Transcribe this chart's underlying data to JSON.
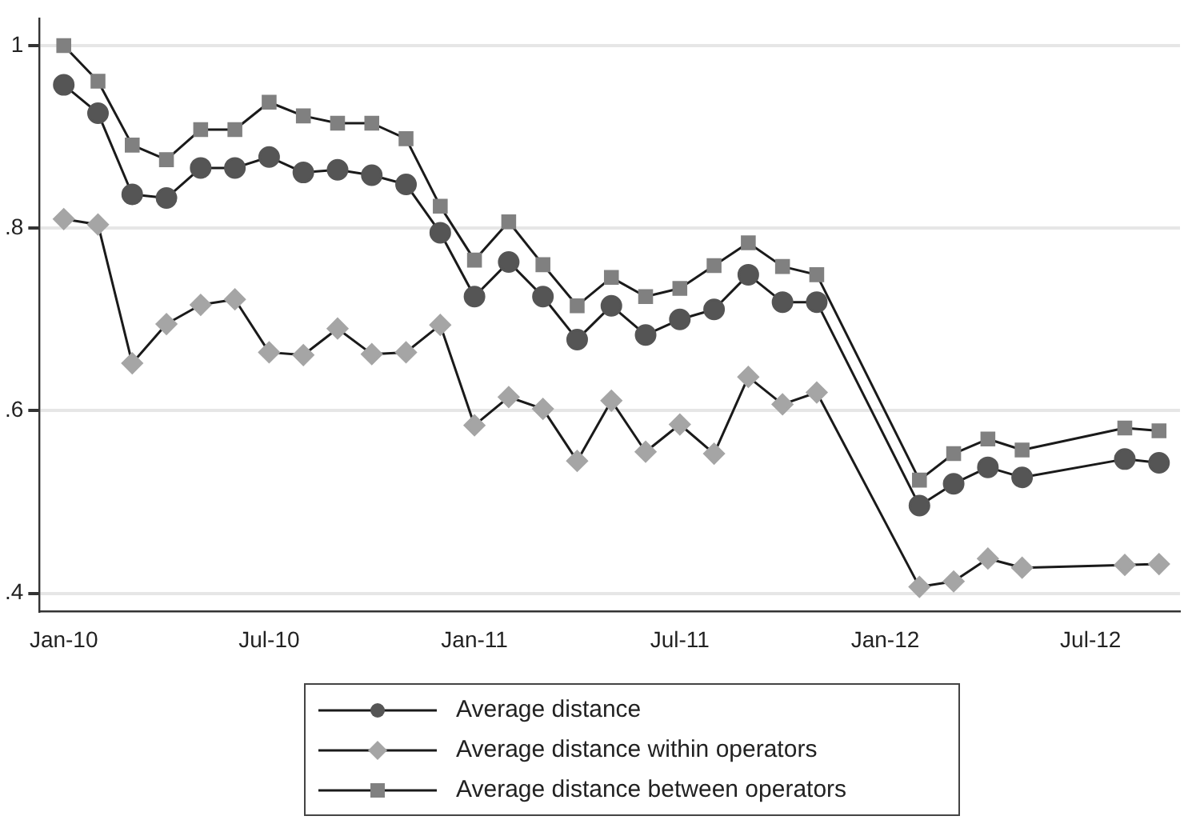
{
  "chart_data": {
    "type": "line",
    "x": [
      "2010-01",
      "2010-02",
      "2010-03",
      "2010-04",
      "2010-05",
      "2010-06",
      "2010-07",
      "2010-08",
      "2010-09",
      "2010-10",
      "2010-11",
      "2010-12",
      "2011-01",
      "2011-02",
      "2011-03",
      "2011-04",
      "2011-05",
      "2011-06",
      "2011-07",
      "2011-08",
      "2011-09",
      "2011-10",
      "2011-11",
      "2012-02",
      "2012-03",
      "2012-04",
      "2012-05",
      "2012-08",
      "2012-09"
    ],
    "series": [
      {
        "name": "Average distance",
        "color": "#555555",
        "marker": "circle",
        "values": [
          0.957,
          0.926,
          0.837,
          0.833,
          0.866,
          0.866,
          0.878,
          0.861,
          0.864,
          0.858,
          0.848,
          0.795,
          0.725,
          0.763,
          0.725,
          0.678,
          0.715,
          0.683,
          0.7,
          0.711,
          0.749,
          0.719,
          0.719,
          0.496,
          0.52,
          0.538,
          0.527,
          0.547,
          0.543
        ]
      },
      {
        "name": "Average distance within operators",
        "color": "#a5a5a5",
        "marker": "diamond",
        "values": [
          0.81,
          0.804,
          0.652,
          0.695,
          0.716,
          0.722,
          0.664,
          0.661,
          0.69,
          0.662,
          0.664,
          0.694,
          0.584,
          0.615,
          0.602,
          0.545,
          0.611,
          0.555,
          0.585,
          0.553,
          0.637,
          0.607,
          0.62,
          0.407,
          0.413,
          0.438,
          0.428,
          0.431,
          0.432
        ]
      },
      {
        "name": "Average distance between operators",
        "color": "#808080",
        "marker": "square",
        "values": [
          1.0,
          0.961,
          0.891,
          0.875,
          0.908,
          0.908,
          0.938,
          0.923,
          0.915,
          0.915,
          0.898,
          0.824,
          0.765,
          0.807,
          0.76,
          0.715,
          0.746,
          0.725,
          0.734,
          0.759,
          0.784,
          0.758,
          0.749,
          0.524,
          0.553,
          0.569,
          0.557,
          0.581,
          0.578
        ]
      }
    ],
    "xlim": [
      "2009-12-10",
      "2012-09-20"
    ],
    "xticks": [
      {
        "value": "2010-01",
        "label": "Jan-10"
      },
      {
        "value": "2010-07",
        "label": "Jul-10"
      },
      {
        "value": "2011-01",
        "label": "Jan-11"
      },
      {
        "value": "2011-07",
        "label": "Jul-11"
      },
      {
        "value": "2012-01",
        "label": "Jan-12"
      },
      {
        "value": "2012-07",
        "label": "Jul-12"
      }
    ],
    "ylim": [
      0.38,
      1.03
    ],
    "yticks": [
      {
        "value": 0.4,
        "label": ".4"
      },
      {
        "value": 0.6,
        "label": ".6"
      },
      {
        "value": 0.8,
        "label": ".8"
      },
      {
        "value": 1,
        "label": "1"
      }
    ],
    "grid": "y",
    "legend": "bottom"
  }
}
